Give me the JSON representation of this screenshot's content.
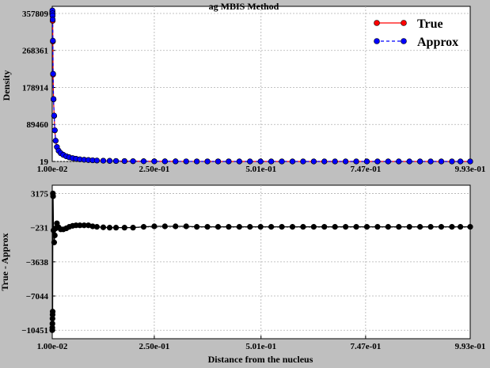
{
  "chart_data": [
    {
      "type": "line",
      "title": "ag  MBIS Method",
      "xlabel": "",
      "ylabel": "Density",
      "xlim": [
        0.01,
        0.993
      ],
      "ylim": [
        19,
        375000
      ],
      "x_ticks": [
        0.01,
        0.25,
        0.501,
        0.747,
        0.993
      ],
      "x_tick_labels": [
        "1.00e-02",
        "2.50e-01",
        "5.01e-01",
        "7.47e-01",
        "9.93e-01"
      ],
      "y_ticks": [
        19,
        89460,
        178914,
        268361,
        357809
      ],
      "y_tick_labels": [
        "19",
        "89460",
        "178914",
        "268361",
        "357809"
      ],
      "grid": true,
      "legend": {
        "position": "top-right",
        "entries": [
          "True",
          "Approx"
        ]
      },
      "x": [
        0.01,
        0.0102,
        0.0104,
        0.0106,
        0.0108,
        0.011,
        0.0115,
        0.012,
        0.013,
        0.0145,
        0.016,
        0.018,
        0.021,
        0.025,
        0.03,
        0.036,
        0.043,
        0.05,
        0.058,
        0.066,
        0.075,
        0.085,
        0.095,
        0.105,
        0.115,
        0.13,
        0.145,
        0.16,
        0.18,
        0.2,
        0.225,
        0.25,
        0.275,
        0.3,
        0.325,
        0.35,
        0.375,
        0.4,
        0.425,
        0.45,
        0.475,
        0.5,
        0.525,
        0.55,
        0.575,
        0.6,
        0.625,
        0.65,
        0.675,
        0.7,
        0.725,
        0.75,
        0.775,
        0.8,
        0.825,
        0.85,
        0.875,
        0.9,
        0.925,
        0.95,
        0.97,
        0.993
      ],
      "series": [
        {
          "name": "True",
          "color": "#ff0000",
          "marker": "circle",
          "line": "solid",
          "values": [
            357809,
            360000,
            362000,
            355000,
            352000,
            340000,
            290000,
            210000,
            150000,
            110000,
            75000,
            50000,
            35000,
            26000,
            20000,
            16000,
            12500,
            10000,
            8000,
            6500,
            5200,
            4200,
            3400,
            2800,
            2300,
            1800,
            1400,
            1100,
            850,
            650,
            480,
            360,
            270,
            200,
            150,
            110,
            85,
            65,
            52,
            43,
            37,
            33,
            30,
            28,
            26,
            25,
            24,
            23,
            22,
            21.5,
            21,
            20.5,
            20.2,
            20,
            19.8,
            19.6,
            19.4,
            19.3,
            19.2,
            19.1,
            19.05,
            19
          ]
        },
        {
          "name": "Approx",
          "color": "#0000ff",
          "marker": "circle",
          "line": "dashed",
          "values": [
            357809,
            363000,
            365000,
            358000,
            353000,
            343000,
            292000,
            212000,
            151000,
            111000,
            75500,
            50200,
            35100,
            26050,
            20030,
            16010,
            12510,
            10005,
            8002,
            6501,
            5200,
            4200,
            3400,
            2800,
            2300,
            1800,
            1400,
            1100,
            850,
            650,
            480,
            360,
            270,
            200,
            150,
            110,
            85,
            65,
            52,
            43,
            37,
            33,
            30,
            28,
            26,
            25,
            24,
            23,
            22,
            21.5,
            21,
            20.5,
            20.2,
            20,
            19.8,
            19.6,
            19.4,
            19.3,
            19.2,
            19.1,
            19.05,
            19
          ]
        }
      ]
    },
    {
      "type": "line",
      "title": "",
      "xlabel": "Distance from the nucleus",
      "ylabel": "True - Approx",
      "xlim": [
        0.01,
        0.993
      ],
      "ylim": [
        -11300,
        4000
      ],
      "x_ticks": [
        0.01,
        0.25,
        0.501,
        0.747,
        0.993
      ],
      "x_tick_labels": [
        "1.00e-02",
        "2.50e-01",
        "5.01e-01",
        "7.47e-01",
        "9.93e-01"
      ],
      "y_ticks": [
        -10451,
        -7044,
        -3638,
        -231,
        3175
      ],
      "y_tick_labels": [
        "−10451",
        "−7044",
        "−3638",
        "−231",
        "3175"
      ],
      "grid": true,
      "x": [
        0.01,
        0.0102,
        0.0104,
        0.0106,
        0.0108,
        0.011,
        0.0115,
        0.012,
        0.013,
        0.0145,
        0.016,
        0.018,
        0.021,
        0.025,
        0.03,
        0.036,
        0.043,
        0.05,
        0.058,
        0.066,
        0.075,
        0.085,
        0.095,
        0.105,
        0.115,
        0.13,
        0.145,
        0.16,
        0.18,
        0.2,
        0.225,
        0.25,
        0.275,
        0.3,
        0.325,
        0.35,
        0.375,
        0.4,
        0.425,
        0.45,
        0.475,
        0.5,
        0.525,
        0.55,
        0.575,
        0.6,
        0.625,
        0.65,
        0.675,
        0.7,
        0.725,
        0.75,
        0.775,
        0.8,
        0.825,
        0.85,
        0.875,
        0.9,
        0.925,
        0.95,
        0.97,
        0.993
      ],
      "series": [
        {
          "name": "",
          "color": "#000000",
          "marker": "circle",
          "line": "solid",
          "values": [
            -10451,
            -10200,
            -9800,
            -9300,
            -8900,
            -8600,
            3175,
            2900,
            -500,
            -1700,
            -1000,
            -300,
            200,
            -200,
            -400,
            -400,
            -300,
            -150,
            -50,
            0,
            0,
            0,
            0,
            -100,
            -150,
            -200,
            -231,
            -231,
            -231,
            -231,
            -150,
            -100,
            -100,
            -100,
            -100,
            -150,
            -150,
            -150,
            -150,
            -150,
            -150,
            -150,
            -150,
            -150,
            -150,
            -150,
            -150,
            -150,
            -150,
            -150,
            -150,
            -150,
            -150,
            -150,
            -150,
            -150,
            -150,
            -150,
            -150,
            -150,
            -150,
            -150
          ]
        }
      ]
    }
  ]
}
